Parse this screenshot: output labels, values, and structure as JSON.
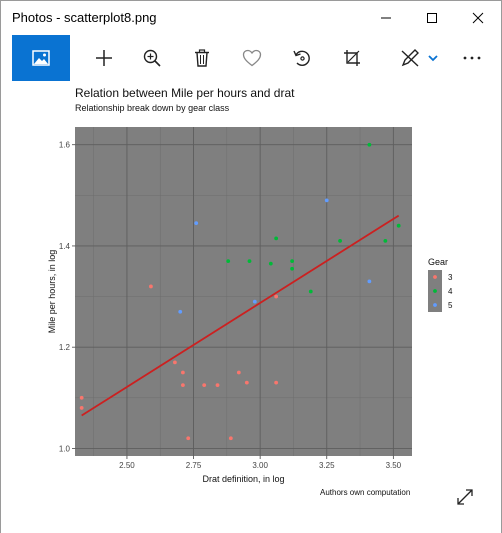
{
  "window": {
    "title": "Photos - scatterplot8.png"
  },
  "toolbar": {
    "icons": [
      "image-icon",
      "add-icon",
      "zoom-in-icon",
      "delete-icon",
      "favorite-icon",
      "rotate-icon",
      "crop-icon",
      "edit-icon",
      "more-icon"
    ]
  },
  "chart_data": {
    "type": "scatter",
    "title": "Relation between Mile per hours and drat",
    "subtitle": "Relationship break down by gear class",
    "xlabel": "Drat definition, in log",
    "ylabel": "Mile per hours, in log",
    "caption": "Authors own computation",
    "xlim": [
      2.305,
      3.57
    ],
    "ylim": [
      0.985,
      1.635
    ],
    "xticks": [
      2.5,
      2.75,
      3.0,
      3.25,
      3.5
    ],
    "xtick_labels": [
      "2.50",
      "2.75",
      "3.00",
      "3.25",
      "3.50"
    ],
    "yticks": [
      1.0,
      1.2,
      1.4,
      1.6
    ],
    "ytick_labels": [
      "1.0",
      "1.2",
      "1.4",
      "1.6"
    ],
    "grid": true,
    "legend": {
      "title": "Gear",
      "position": "right",
      "entries": [
        {
          "label": "3",
          "color": "#f8766d"
        },
        {
          "label": "4",
          "color": "#00ba38"
        },
        {
          "label": "5",
          "color": "#619cff"
        }
      ]
    },
    "series": [
      {
        "name": "3",
        "color": "#f8766d",
        "points": [
          [
            2.33,
            1.1
          ],
          [
            2.33,
            1.08
          ],
          [
            2.59,
            1.32
          ],
          [
            2.68,
            1.17
          ],
          [
            2.71,
            1.15
          ],
          [
            2.71,
            1.125
          ],
          [
            2.73,
            1.02
          ],
          [
            2.79,
            1.125
          ],
          [
            2.84,
            1.125
          ],
          [
            2.89,
            1.02
          ],
          [
            2.92,
            1.15
          ],
          [
            2.95,
            1.13
          ],
          [
            3.06,
            1.13
          ],
          [
            3.06,
            1.3
          ]
        ]
      },
      {
        "name": "4",
        "color": "#00ba38",
        "points": [
          [
            2.88,
            1.37
          ],
          [
            2.96,
            1.37
          ],
          [
            3.04,
            1.365
          ],
          [
            3.06,
            1.415
          ],
          [
            3.12,
            1.355
          ],
          [
            3.12,
            1.37
          ],
          [
            3.19,
            1.31
          ],
          [
            3.3,
            1.41
          ],
          [
            3.41,
            1.6
          ],
          [
            3.47,
            1.41
          ],
          [
            3.52,
            1.44
          ]
        ]
      },
      {
        "name": "5",
        "color": "#619cff",
        "points": [
          [
            2.7,
            1.27
          ],
          [
            2.76,
            1.445
          ],
          [
            2.98,
            1.29
          ],
          [
            3.25,
            1.49
          ],
          [
            3.41,
            1.33
          ]
        ]
      }
    ],
    "fit_line": {
      "color": "#cc2020",
      "points": [
        [
          2.33,
          1.065
        ],
        [
          3.52,
          1.46
        ]
      ]
    }
  }
}
